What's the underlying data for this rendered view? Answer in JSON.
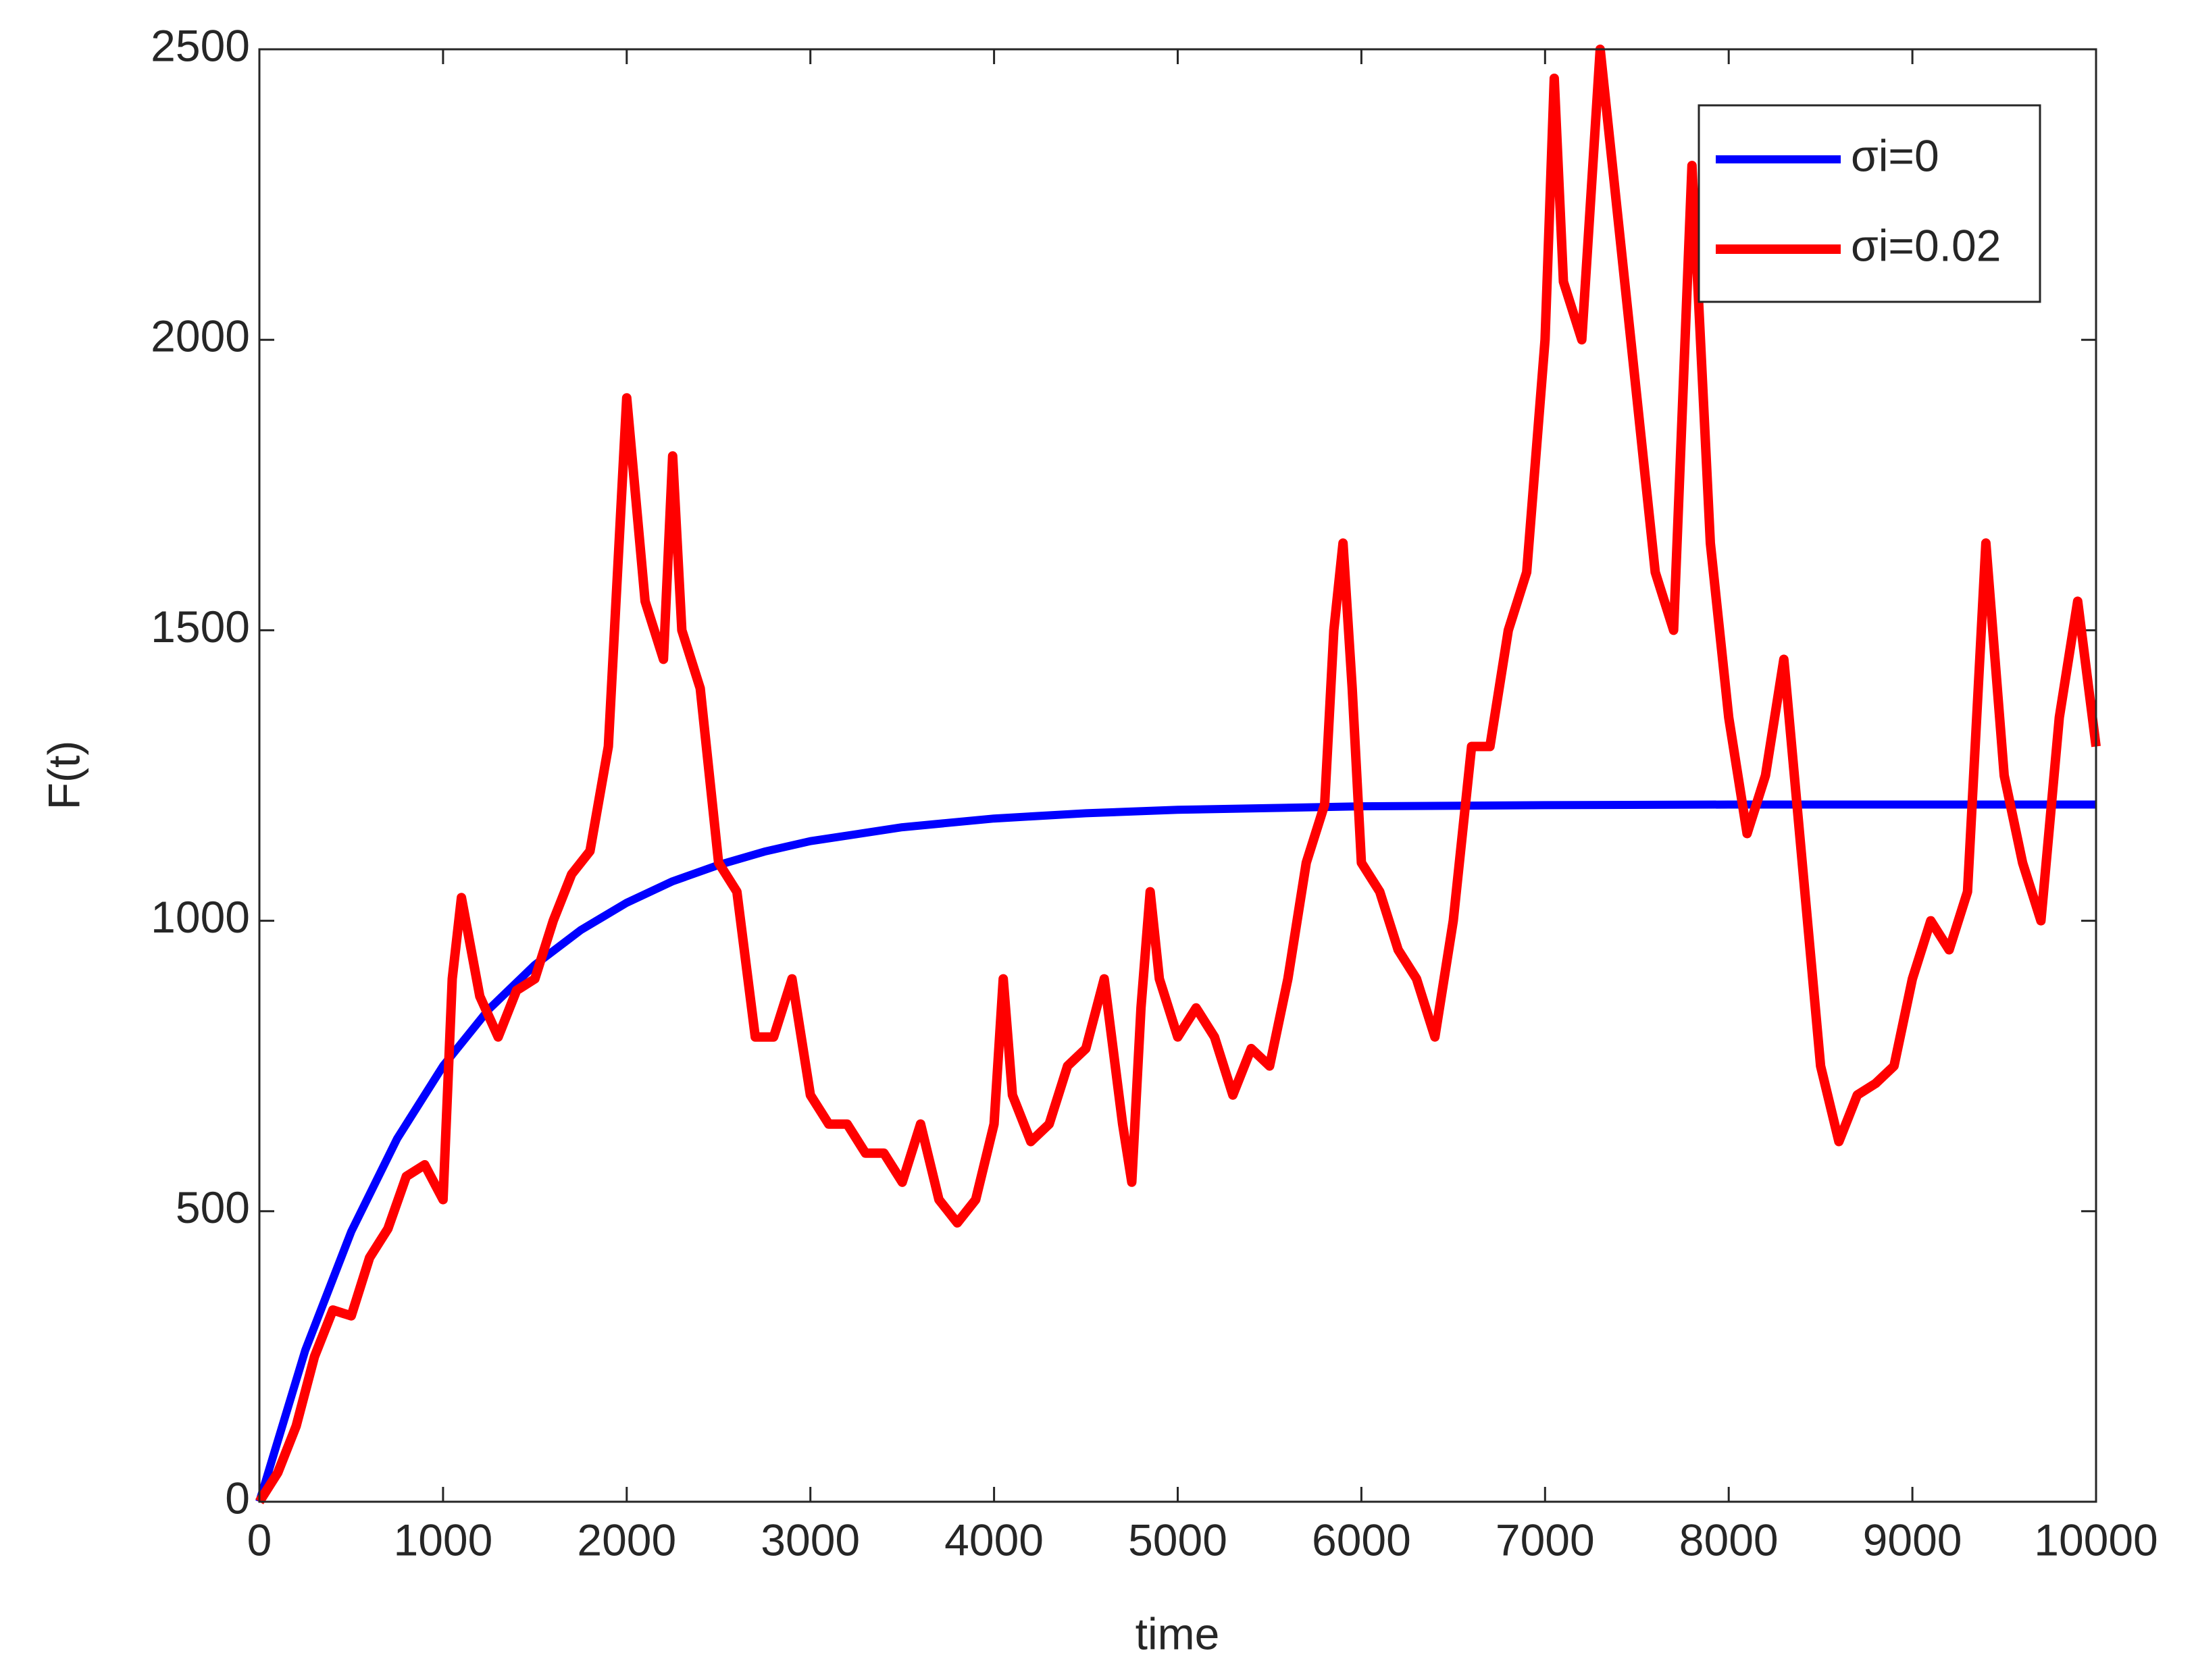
{
  "chart_data": {
    "type": "line",
    "x_label": "time",
    "y_label": "F(t)",
    "xlim": [
      0,
      10000
    ],
    "xticks": [
      0,
      1000,
      2000,
      3000,
      4000,
      5000,
      6000,
      7000,
      8000,
      9000,
      10000
    ],
    "ylim": [
      0,
      2500
    ],
    "yticks": [
      0,
      500,
      1000,
      1500,
      2000,
      2500
    ],
    "legend": "northeast",
    "series": [
      {
        "name": "σi=0",
        "color": "#0000ff",
        "x": [
          0,
          250,
          500,
          750,
          1000,
          1250,
          1500,
          1750,
          2000,
          2250,
          2500,
          2750,
          3000,
          3500,
          4000,
          4500,
          5000,
          6000,
          7000,
          8000,
          9000,
          10000
        ],
        "values": [
          0,
          261,
          465,
          625,
          750,
          848,
          924,
          984,
          1031,
          1068,
          1096,
          1119,
          1137,
          1161,
          1176,
          1185,
          1191,
          1197,
          1199,
          1200,
          1200,
          1200
        ]
      },
      {
        "name": "σi=0.02",
        "color": "#ff0000",
        "x": [
          0,
          100,
          200,
          300,
          400,
          500,
          600,
          700,
          800,
          900,
          1000,
          1050,
          1100,
          1200,
          1300,
          1400,
          1500,
          1600,
          1700,
          1800,
          1900,
          2000,
          2100,
          2200,
          2250,
          2300,
          2400,
          2500,
          2600,
          2700,
          2800,
          2900,
          3000,
          3100,
          3200,
          3300,
          3400,
          3500,
          3600,
          3700,
          3800,
          3900,
          4000,
          4050,
          4100,
          4200,
          4300,
          4400,
          4500,
          4600,
          4700,
          4750,
          4800,
          4850,
          4900,
          5000,
          5100,
          5200,
          5300,
          5400,
          5500,
          5600,
          5700,
          5800,
          5850,
          5900,
          5950,
          6000,
          6100,
          6200,
          6300,
          6400,
          6500,
          6600,
          6700,
          6800,
          6900,
          7000,
          7050,
          7100,
          7200,
          7300,
          7400,
          7500,
          7600,
          7700,
          7800,
          7900,
          8000,
          8100,
          8200,
          8300,
          8400,
          8500,
          8600,
          8700,
          8800,
          8900,
          9000,
          9100,
          9200,
          9300,
          9400,
          9500,
          9600,
          9700,
          9800,
          9900,
          10000
        ],
        "values": [
          0,
          50,
          130,
          250,
          330,
          320,
          420,
          470,
          560,
          580,
          520,
          900,
          1040,
          870,
          800,
          880,
          900,
          1000,
          1080,
          1120,
          1300,
          1900,
          1550,
          1450,
          1800,
          1500,
          1400,
          1100,
          1050,
          800,
          800,
          900,
          700,
          650,
          650,
          600,
          600,
          550,
          650,
          520,
          480,
          520,
          650,
          900,
          700,
          620,
          650,
          750,
          780,
          900,
          650,
          550,
          850,
          1050,
          900,
          800,
          850,
          800,
          700,
          780,
          750,
          900,
          1100,
          1200,
          1500,
          1650,
          1400,
          1100,
          1050,
          950,
          900,
          800,
          1000,
          1300,
          1300,
          1500,
          1600,
          2000,
          2450,
          2100,
          2000,
          2500,
          2200,
          1900,
          1600,
          1500,
          2300,
          1650,
          1350,
          1150,
          1250,
          1450,
          1100,
          750,
          620,
          700,
          720,
          750,
          900,
          1000,
          950,
          1050,
          1650,
          1250,
          1100,
          1000,
          1350,
          1550,
          1300
        ]
      }
    ]
  }
}
